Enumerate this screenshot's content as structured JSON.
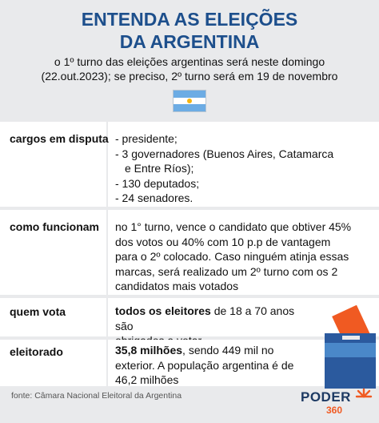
{
  "header": {
    "title_line1": "ENTENDA AS ELEIÇÕES",
    "title_line2": "DA ARGENTINA",
    "subtitle_line1": "o 1º turno das eleições argentinas será neste domingo",
    "subtitle_line2": "(22.out.2023); se preciso, 2º turno será em 19 de novembro"
  },
  "flag": {
    "colors": {
      "celeste": "#6cace4",
      "white": "#ffffff",
      "sun": "#f6b40e"
    }
  },
  "rows": [
    {
      "label": "cargos em disputa",
      "items": [
        "- presidente;",
        "- 3 governadores (Buenos Aires, Catamarca",
        "e Entre Ríos);",
        "- 130 deputados;",
        "- 24 senadores."
      ]
    },
    {
      "label": "como funcionam",
      "text_lines": [
        "no 1° turno, vence o candidato que obtiver 45%",
        "dos votos ou 40% com 10 p.p de vantagem",
        "para o 2º colocado. Caso ninguém atinja essas",
        "marcas, será realizado um 2º turno com os 2",
        "candidatos mais votados"
      ]
    },
    {
      "label": "quem vota",
      "bold": "todos os eleitores",
      "rest_line1": " de 18 a 70 anos são",
      "line2": "obrigados a votar"
    },
    {
      "label": "eleitorado",
      "bold": "35,8 milhões",
      "rest_line1": ", sendo 449 mil no",
      "line2": "exterior. A população argentina é de",
      "line3": "46,2 milhões"
    }
  ],
  "footer": {
    "source": "fonte: Câmara Nacional Eleitoral da Argentina",
    "logo_word": "PODER",
    "logo_number": "360"
  },
  "colors": {
    "title_blue": "#1d4f8c",
    "background": "#e9eaec",
    "urn_blue": "#2b5a9e",
    "urn_light": "#4a88c9",
    "ballot_orange": "#f05a22"
  }
}
